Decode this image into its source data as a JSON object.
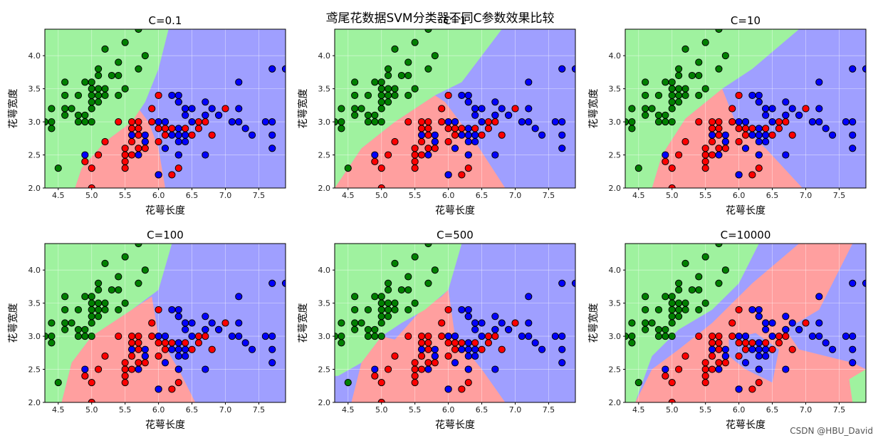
{
  "suptitle": "鸢尾花数据SVM分类器不同C参数效果比较",
  "watermark": "CSDN @HBU_David",
  "colors": {
    "region_setosa": "#9ff29f",
    "region_versicolor": "#ff9f9f",
    "region_virginica": "#9f9fff",
    "point_setosa": "#008000",
    "point_versicolor": "#ff0000",
    "point_virginica": "#0000ff",
    "grid": "#ffffff"
  },
  "chart_data": [
    {
      "type": "scatter",
      "title": "C=0.1",
      "xlabel": "花萼长度",
      "ylabel": "花萼宽度",
      "xlim": [
        4.3,
        7.9
      ],
      "ylim": [
        2.0,
        4.4
      ],
      "xticks": [
        "4.5",
        "5.0",
        "5.5",
        "6.0",
        "6.5",
        "7.0",
        "7.5"
      ],
      "yticks": [
        "2.0",
        "2.5",
        "3.0",
        "3.5",
        "4.0"
      ],
      "grid": true,
      "regions": {
        "background": "virginica",
        "setosa": [
          [
            4.3,
            4.4
          ],
          [
            6.15,
            4.4
          ],
          [
            6.0,
            3.8
          ],
          [
            5.8,
            3.3
          ],
          [
            5.6,
            3.0
          ],
          [
            5.2,
            2.7
          ],
          [
            4.85,
            2.3
          ],
          [
            4.75,
            2.0
          ],
          [
            4.3,
            2.0
          ]
        ],
        "versicolor": [
          [
            4.75,
            2.0
          ],
          [
            4.85,
            2.3
          ],
          [
            5.2,
            2.7
          ],
          [
            5.6,
            3.0
          ],
          [
            5.7,
            3.2
          ],
          [
            5.85,
            3.0
          ],
          [
            6.0,
            2.6
          ],
          [
            6.1,
            2.0
          ]
        ]
      }
    },
    {
      "type": "scatter",
      "title": "C=1",
      "xlabel": "花萼长度",
      "ylabel": "花萼宽度",
      "xlim": [
        4.3,
        7.9
      ],
      "ylim": [
        2.0,
        4.4
      ],
      "xticks": [
        "4.5",
        "5.0",
        "5.5",
        "6.0",
        "6.5",
        "7.0",
        "7.5"
      ],
      "yticks": [
        "2.0",
        "2.5",
        "3.0",
        "3.5",
        "4.0"
      ],
      "grid": true,
      "regions": {
        "background": "virginica",
        "setosa": [
          [
            4.3,
            4.4
          ],
          [
            6.8,
            4.4
          ],
          [
            6.2,
            3.6
          ],
          [
            5.8,
            3.4
          ],
          [
            5.2,
            3.0
          ],
          [
            4.7,
            2.6
          ],
          [
            4.3,
            2.0
          ]
        ],
        "versicolor": [
          [
            4.3,
            2.0
          ],
          [
            4.7,
            2.6
          ],
          [
            5.2,
            3.0
          ],
          [
            5.8,
            3.4
          ],
          [
            5.95,
            3.3
          ],
          [
            6.4,
            2.7
          ],
          [
            6.85,
            2.0
          ]
        ]
      }
    },
    {
      "type": "scatter",
      "title": "C=10",
      "xlabel": "花萼长度",
      "ylabel": "花萼宽度",
      "xlim": [
        4.3,
        7.9
      ],
      "ylim": [
        2.0,
        4.4
      ],
      "xticks": [
        "4.5",
        "5.0",
        "5.5",
        "6.0",
        "6.5",
        "7.0",
        "7.5"
      ],
      "yticks": [
        "2.0",
        "2.5",
        "3.0",
        "3.5",
        "4.0"
      ],
      "grid": true,
      "regions": {
        "background": "virginica",
        "setosa": [
          [
            4.3,
            4.4
          ],
          [
            6.9,
            4.4
          ],
          [
            6.2,
            3.8
          ],
          [
            5.75,
            3.5
          ],
          [
            5.2,
            3.05
          ],
          [
            4.85,
            2.5
          ],
          [
            4.7,
            2.0
          ],
          [
            4.3,
            2.0
          ]
        ],
        "versicolor": [
          [
            4.7,
            2.0
          ],
          [
            4.85,
            2.5
          ],
          [
            5.2,
            3.05
          ],
          [
            5.75,
            3.5
          ],
          [
            5.95,
            3.0
          ],
          [
            6.4,
            2.6
          ],
          [
            6.95,
            2.0
          ]
        ]
      }
    },
    {
      "type": "scatter",
      "title": "C=100",
      "xlabel": "花萼长度",
      "ylabel": "花萼宽度",
      "xlim": [
        4.3,
        7.9
      ],
      "ylim": [
        2.0,
        4.4
      ],
      "xticks": [
        "4.5",
        "5.0",
        "5.5",
        "6.0",
        "6.5",
        "7.0",
        "7.5"
      ],
      "yticks": [
        "2.0",
        "2.5",
        "3.0",
        "3.5",
        "4.0"
      ],
      "grid": true,
      "regions": {
        "background": "virginica",
        "setosa": [
          [
            4.3,
            4.4
          ],
          [
            6.2,
            4.4
          ],
          [
            6.0,
            3.7
          ],
          [
            5.6,
            3.4
          ],
          [
            5.0,
            3.0
          ],
          [
            4.7,
            2.6
          ],
          [
            4.55,
            2.0
          ],
          [
            4.3,
            2.0
          ]
        ],
        "versicolor": [
          [
            4.55,
            2.0
          ],
          [
            4.7,
            2.6
          ],
          [
            5.0,
            3.0
          ],
          [
            5.6,
            3.4
          ],
          [
            5.9,
            3.6
          ],
          [
            6.0,
            3.0
          ],
          [
            6.3,
            2.5
          ],
          [
            6.55,
            2.0
          ]
        ]
      }
    },
    {
      "type": "scatter",
      "title": "C=500",
      "xlabel": "花萼长度",
      "ylabel": "花萼宽度",
      "xlim": [
        4.3,
        7.9
      ],
      "ylim": [
        2.0,
        4.4
      ],
      "xticks": [
        "4.5",
        "5.0",
        "5.5",
        "6.0",
        "6.5",
        "7.0",
        "7.5"
      ],
      "yticks": [
        "2.0",
        "2.5",
        "3.0",
        "3.5",
        "4.0"
      ],
      "grid": true,
      "regions": {
        "background": "virginica",
        "setosa": [
          [
            4.3,
            4.4
          ],
          [
            6.2,
            4.4
          ],
          [
            6.0,
            3.7
          ],
          [
            5.65,
            3.4
          ],
          [
            5.3,
            3.2
          ],
          [
            5.0,
            3.0
          ],
          [
            4.7,
            2.6
          ],
          [
            4.35,
            2.4
          ],
          [
            4.3,
            2.4
          ]
        ],
        "versicolor": [
          [
            4.55,
            2.0
          ],
          [
            4.7,
            2.6
          ],
          [
            5.0,
            3.0
          ],
          [
            5.2,
            2.95
          ],
          [
            5.6,
            3.4
          ],
          [
            5.9,
            3.6
          ],
          [
            6.0,
            3.7
          ],
          [
            6.1,
            3.0
          ],
          [
            6.5,
            2.5
          ],
          [
            6.85,
            2.0
          ]
        ]
      }
    },
    {
      "type": "scatter",
      "title": "C=10000",
      "xlabel": "花萼长度",
      "ylabel": "花萼宽度",
      "xlim": [
        4.3,
        7.9
      ],
      "ylim": [
        2.0,
        4.4
      ],
      "xticks": [
        "4.5",
        "5.0",
        "5.5",
        "6.0",
        "6.5",
        "7.0",
        "7.5"
      ],
      "yticks": [
        "2.0",
        "2.5",
        "3.0",
        "3.5",
        "4.0"
      ],
      "grid": true,
      "regions": {
        "background": "virginica",
        "setosa": [
          [
            4.3,
            4.4
          ],
          [
            6.3,
            4.4
          ],
          [
            6.0,
            3.8
          ],
          [
            5.6,
            3.4
          ],
          [
            5.1,
            3.1
          ],
          [
            4.7,
            2.7
          ],
          [
            4.45,
            2.0
          ],
          [
            4.3,
            2.0
          ]
        ],
        "setosa2": [
          [
            7.7,
            2.0
          ],
          [
            7.9,
            2.0
          ],
          [
            7.9,
            2.5
          ],
          [
            7.65,
            2.35
          ]
        ],
        "versicolor": [
          [
            4.45,
            2.0
          ],
          [
            4.7,
            2.5
          ],
          [
            5.1,
            2.8
          ],
          [
            5.6,
            3.2
          ],
          [
            6.2,
            3.8
          ],
          [
            6.9,
            4.4
          ],
          [
            7.7,
            4.4
          ],
          [
            7.2,
            3.4
          ],
          [
            6.7,
            3.1
          ],
          [
            6.9,
            2.8
          ],
          [
            7.7,
            2.6
          ],
          [
            7.9,
            2.5
          ],
          [
            7.9,
            2.0
          ]
        ],
        "virginica_island": [
          [
            5.85,
            2.95
          ],
          [
            6.25,
            3.05
          ],
          [
            6.6,
            2.8
          ],
          [
            6.5,
            2.3
          ],
          [
            6.1,
            2.5
          ],
          [
            5.85,
            2.7
          ]
        ]
      }
    }
  ],
  "points": {
    "setosa": [
      [
        4.3,
        3.0
      ],
      [
        4.4,
        2.9
      ],
      [
        4.4,
        3.0
      ],
      [
        4.4,
        3.2
      ],
      [
        4.5,
        2.3
      ],
      [
        4.6,
        3.1
      ],
      [
        4.6,
        3.2
      ],
      [
        4.6,
        3.4
      ],
      [
        4.6,
        3.6
      ],
      [
        4.7,
        3.2
      ],
      [
        4.8,
        3.0
      ],
      [
        4.8,
        3.1
      ],
      [
        4.8,
        3.4
      ],
      [
        4.9,
        3.0
      ],
      [
        4.9,
        3.1
      ],
      [
        4.9,
        3.6
      ],
      [
        5.0,
        3.0
      ],
      [
        5.0,
        3.2
      ],
      [
        5.0,
        3.3
      ],
      [
        5.0,
        3.4
      ],
      [
        5.0,
        3.5
      ],
      [
        5.0,
        3.6
      ],
      [
        5.1,
        3.3
      ],
      [
        5.1,
        3.4
      ],
      [
        5.1,
        3.5
      ],
      [
        5.1,
        3.7
      ],
      [
        5.1,
        3.8
      ],
      [
        5.2,
        3.4
      ],
      [
        5.2,
        3.5
      ],
      [
        5.2,
        4.1
      ],
      [
        5.3,
        3.7
      ],
      [
        5.4,
        3.4
      ],
      [
        5.4,
        3.7
      ],
      [
        5.4,
        3.9
      ],
      [
        5.5,
        3.5
      ],
      [
        5.5,
        4.2
      ],
      [
        5.7,
        3.8
      ],
      [
        5.7,
        4.4
      ],
      [
        5.8,
        4.0
      ]
    ],
    "versicolor": [
      [
        4.9,
        2.4
      ],
      [
        5.0,
        2.0
      ],
      [
        5.0,
        2.3
      ],
      [
        5.1,
        2.5
      ],
      [
        5.2,
        2.7
      ],
      [
        5.4,
        3.0
      ],
      [
        5.5,
        2.3
      ],
      [
        5.5,
        2.4
      ],
      [
        5.5,
        2.5
      ],
      [
        5.5,
        2.6
      ],
      [
        5.6,
        2.5
      ],
      [
        5.6,
        2.7
      ],
      [
        5.6,
        2.9
      ],
      [
        5.6,
        3.0
      ],
      [
        5.7,
        2.6
      ],
      [
        5.7,
        2.8
      ],
      [
        5.7,
        2.9
      ],
      [
        5.7,
        3.0
      ],
      [
        5.8,
        2.6
      ],
      [
        5.8,
        2.7
      ],
      [
        5.9,
        3.0
      ],
      [
        5.9,
        3.2
      ],
      [
        6.0,
        2.2
      ],
      [
        6.0,
        2.7
      ],
      [
        6.0,
        2.9
      ],
      [
        6.0,
        3.4
      ],
      [
        6.1,
        2.8
      ],
      [
        6.1,
        2.9
      ],
      [
        6.1,
        3.0
      ],
      [
        6.2,
        2.2
      ],
      [
        6.2,
        2.9
      ],
      [
        6.3,
        2.3
      ],
      [
        6.3,
        2.5
      ],
      [
        6.3,
        3.3
      ],
      [
        6.4,
        2.9
      ],
      [
        6.4,
        3.2
      ],
      [
        6.5,
        2.8
      ],
      [
        6.6,
        2.9
      ],
      [
        6.6,
        3.0
      ],
      [
        6.7,
        3.0
      ],
      [
        6.7,
        3.1
      ],
      [
        6.8,
        2.8
      ],
      [
        6.9,
        3.1
      ],
      [
        7.0,
        3.2
      ]
    ],
    "virginica": [
      [
        4.9,
        2.5
      ],
      [
        5.6,
        2.8
      ],
      [
        5.7,
        2.5
      ],
      [
        5.8,
        2.7
      ],
      [
        5.8,
        2.8
      ],
      [
        6.0,
        2.2
      ],
      [
        6.0,
        3.0
      ],
      [
        6.1,
        2.6
      ],
      [
        6.1,
        3.0
      ],
      [
        6.2,
        2.8
      ],
      [
        6.2,
        3.4
      ],
      [
        6.3,
        2.5
      ],
      [
        6.3,
        2.7
      ],
      [
        6.3,
        2.8
      ],
      [
        6.3,
        2.9
      ],
      [
        6.3,
        3.3
      ],
      [
        6.3,
        3.4
      ],
      [
        6.4,
        2.7
      ],
      [
        6.4,
        2.8
      ],
      [
        6.4,
        3.1
      ],
      [
        6.4,
        3.2
      ],
      [
        6.5,
        3.0
      ],
      [
        6.5,
        3.2
      ],
      [
        6.7,
        2.5
      ],
      [
        6.7,
        3.1
      ],
      [
        6.7,
        3.3
      ],
      [
        6.8,
        3.2
      ],
      [
        6.9,
        3.1
      ],
      [
        7.1,
        3.0
      ],
      [
        7.2,
        3.0
      ],
      [
        7.2,
        3.2
      ],
      [
        7.2,
        3.6
      ],
      [
        7.3,
        2.9
      ],
      [
        7.4,
        2.8
      ],
      [
        7.6,
        3.0
      ],
      [
        7.7,
        2.6
      ],
      [
        7.7,
        2.8
      ],
      [
        7.7,
        3.0
      ],
      [
        7.7,
        3.8
      ],
      [
        7.9,
        3.8
      ]
    ]
  }
}
